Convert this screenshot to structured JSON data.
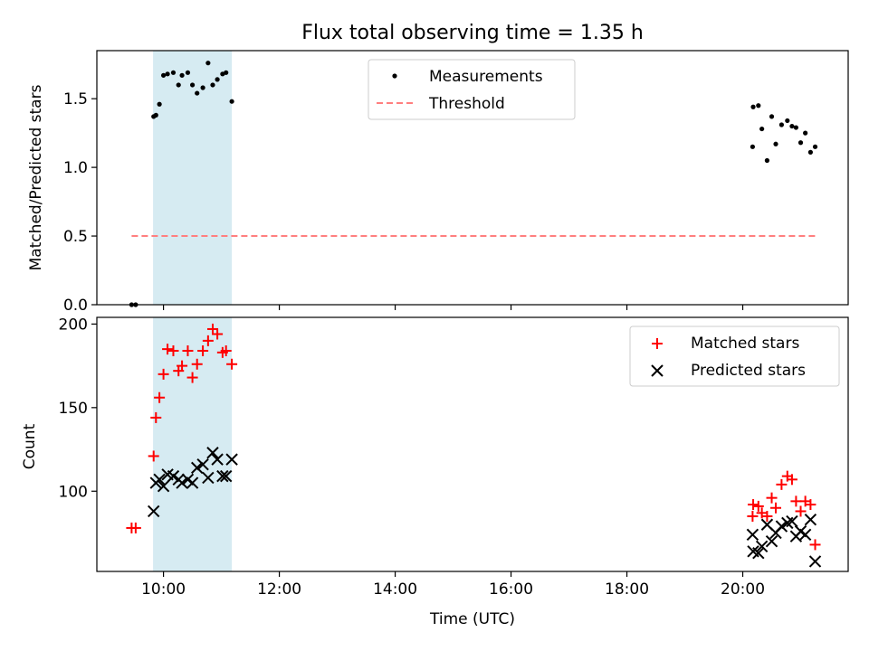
{
  "title": "Flux total observing time = 1.35 h",
  "chart_data": [
    {
      "type": "scatter",
      "ylabel": "Matched/Predicted stars",
      "ylim": [
        0,
        1.85
      ],
      "y_ticks": [
        0.0,
        0.5,
        1.0,
        1.5
      ],
      "y_tick_labels": [
        "0.0",
        "0.5",
        "1.0",
        "1.5"
      ],
      "xlim_hours": [
        8.85,
        21.82
      ],
      "x_ticks_hours": [
        10,
        12,
        14,
        16,
        18,
        20
      ],
      "shaded_span_hours": [
        9.82,
        11.18
      ],
      "shaded_color": "#add8e6",
      "legend_position": "upper center",
      "series": [
        {
          "name": "Measurements",
          "marker": "dot",
          "color": "#000000",
          "points": [
            [
              9.45,
              0.0
            ],
            [
              9.52,
              0.0
            ],
            [
              9.83,
              1.37
            ],
            [
              9.87,
              1.38
            ],
            [
              9.93,
              1.46
            ],
            [
              10.0,
              1.67
            ],
            [
              10.07,
              1.68
            ],
            [
              10.17,
              1.69
            ],
            [
              10.26,
              1.6
            ],
            [
              10.32,
              1.67
            ],
            [
              10.42,
              1.69
            ],
            [
              10.5,
              1.6
            ],
            [
              10.58,
              1.54
            ],
            [
              10.68,
              1.58
            ],
            [
              10.77,
              1.76
            ],
            [
              10.85,
              1.6
            ],
            [
              10.93,
              1.64
            ],
            [
              11.02,
              1.68
            ],
            [
              11.08,
              1.69
            ],
            [
              11.18,
              1.48
            ],
            [
              20.17,
              1.15
            ],
            [
              20.18,
              1.44
            ],
            [
              20.27,
              1.45
            ],
            [
              20.33,
              1.28
            ],
            [
              20.42,
              1.05
            ],
            [
              20.5,
              1.37
            ],
            [
              20.57,
              1.17
            ],
            [
              20.67,
              1.31
            ],
            [
              20.77,
              1.34
            ],
            [
              20.85,
              1.3
            ],
            [
              20.92,
              1.29
            ],
            [
              21.0,
              1.18
            ],
            [
              21.08,
              1.25
            ],
            [
              21.17,
              1.11
            ],
            [
              21.25,
              1.15
            ]
          ]
        },
        {
          "name": "Threshold",
          "style": "dashed",
          "color": "#ff7f7f",
          "points": [
            [
              9.45,
              0.5
            ],
            [
              21.25,
              0.5
            ]
          ]
        }
      ]
    },
    {
      "type": "scatter",
      "xlabel": "Time (UTC)",
      "ylabel": "Count",
      "ylim": [
        52,
        204
      ],
      "y_ticks": [
        100,
        150,
        200
      ],
      "y_tick_labels": [
        "100",
        "150",
        "200"
      ],
      "xlim_hours": [
        8.85,
        21.82
      ],
      "x_ticks_hours": [
        10,
        12,
        14,
        16,
        18,
        20
      ],
      "x_tick_labels": [
        "10:00",
        "12:00",
        "14:00",
        "16:00",
        "18:00",
        "20:00"
      ],
      "shaded_span_hours": [
        9.82,
        11.18
      ],
      "shaded_color": "#add8e6",
      "legend_position": "upper right",
      "series": [
        {
          "name": "Matched stars",
          "marker": "plus",
          "color": "#ff0000",
          "points": [
            [
              9.45,
              78
            ],
            [
              9.52,
              78
            ],
            [
              9.83,
              121
            ],
            [
              9.87,
              144
            ],
            [
              9.93,
              156
            ],
            [
              10.0,
              170
            ],
            [
              10.07,
              185
            ],
            [
              10.17,
              184
            ],
            [
              10.26,
              172
            ],
            [
              10.32,
              175
            ],
            [
              10.42,
              184
            ],
            [
              10.5,
              168
            ],
            [
              10.58,
              176
            ],
            [
              10.68,
              184
            ],
            [
              10.77,
              190
            ],
            [
              10.85,
              197
            ],
            [
              10.93,
              194
            ],
            [
              11.02,
              183
            ],
            [
              11.08,
              184
            ],
            [
              11.18,
              176
            ],
            [
              20.17,
              85
            ],
            [
              20.18,
              92
            ],
            [
              20.27,
              91
            ],
            [
              20.33,
              87
            ],
            [
              20.42,
              85
            ],
            [
              20.5,
              96
            ],
            [
              20.57,
              90
            ],
            [
              20.67,
              104
            ],
            [
              20.77,
              109
            ],
            [
              20.85,
              107
            ],
            [
              20.92,
              94
            ],
            [
              21.0,
              88
            ],
            [
              21.08,
              94
            ],
            [
              21.17,
              92
            ],
            [
              21.25,
              68
            ]
          ]
        },
        {
          "name": "Predicted stars",
          "marker": "x",
          "color": "#000000",
          "points": [
            [
              9.83,
              88
            ],
            [
              9.87,
              105
            ],
            [
              9.93,
              107
            ],
            [
              10.0,
              103
            ],
            [
              10.07,
              110
            ],
            [
              10.17,
              109
            ],
            [
              10.26,
              107
            ],
            [
              10.32,
              105
            ],
            [
              10.42,
              107
            ],
            [
              10.5,
              105
            ],
            [
              10.58,
              114
            ],
            [
              10.68,
              116
            ],
            [
              10.77,
              108
            ],
            [
              10.85,
              123
            ],
            [
              10.93,
              119
            ],
            [
              11.02,
              109
            ],
            [
              11.08,
              109
            ],
            [
              11.18,
              119
            ],
            [
              20.17,
              74
            ],
            [
              20.18,
              64
            ],
            [
              20.27,
              63
            ],
            [
              20.33,
              67
            ],
            [
              20.42,
              80
            ],
            [
              20.5,
              70
            ],
            [
              20.57,
              75
            ],
            [
              20.67,
              79
            ],
            [
              20.77,
              81
            ],
            [
              20.85,
              82
            ],
            [
              20.92,
              73
            ],
            [
              21.0,
              76
            ],
            [
              21.08,
              74
            ],
            [
              21.17,
              83
            ],
            [
              21.25,
              58
            ]
          ]
        }
      ]
    }
  ]
}
